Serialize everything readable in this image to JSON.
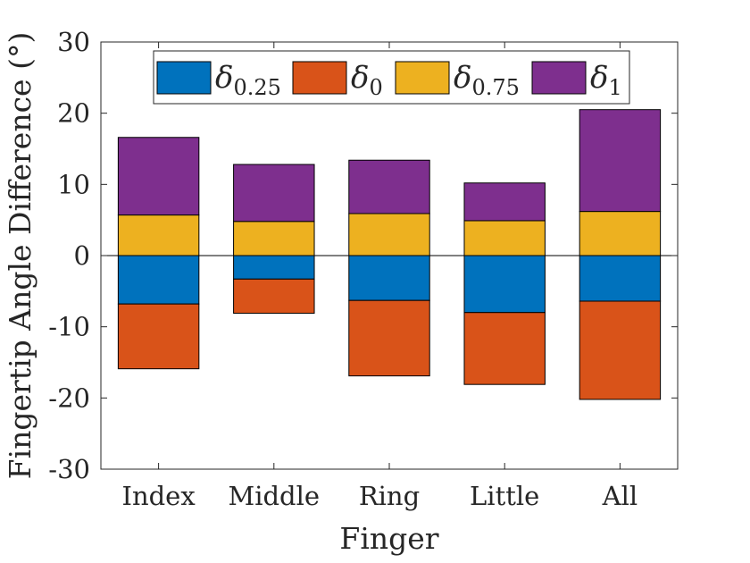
{
  "chart_data": {
    "type": "bar",
    "stacked": "diverging",
    "categories": [
      "Index",
      "Middle",
      "Ring",
      "Little",
      "All"
    ],
    "xlabel": "Finger",
    "ylabel": "Fingertip Angle Difference (°)",
    "ylim": [
      -30,
      30
    ],
    "yticks": [
      -30,
      -20,
      -10,
      0,
      10,
      20,
      30
    ],
    "ytick_labels": [
      "-30",
      "-20",
      "-10",
      "0",
      "10",
      "20",
      "30"
    ],
    "legend_position": "top",
    "grid": false,
    "series": [
      {
        "symbol": "δ",
        "subscript": "0.25",
        "color": "#0072BD",
        "direction": "negative",
        "values": [
          -6.8,
          -3.3,
          -6.3,
          -8.0,
          -6.4
        ]
      },
      {
        "symbol": "δ",
        "subscript": "0",
        "color": "#D95319",
        "direction": "negative",
        "values": [
          -9.1,
          -4.8,
          -10.6,
          -10.1,
          -13.8
        ]
      },
      {
        "symbol": "δ",
        "subscript": "0.75",
        "color": "#EDB120",
        "direction": "positive",
        "values": [
          5.7,
          4.8,
          5.9,
          4.9,
          6.2
        ]
      },
      {
        "symbol": "δ",
        "subscript": "1",
        "color": "#7E2F8E",
        "direction": "positive",
        "values": [
          10.9,
          8.0,
          7.5,
          5.3,
          14.3
        ]
      }
    ]
  }
}
